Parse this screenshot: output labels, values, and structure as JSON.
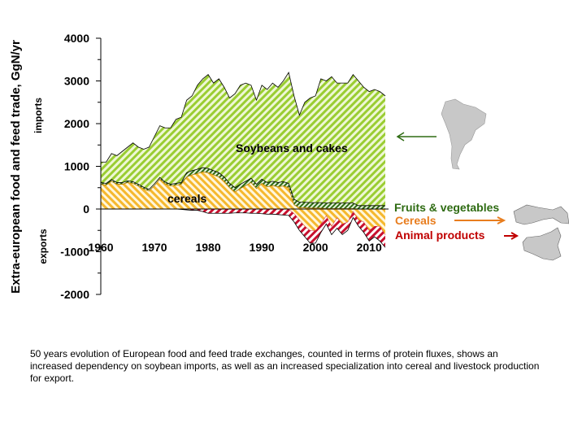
{
  "chart_data": {
    "type": "area",
    "ylabel": "Extra-european food and feed trade, GgN/yr",
    "ylim": [
      -2000,
      4000
    ],
    "yticks": [
      "4000",
      "3000",
      "2000",
      "1000",
      "0",
      "-1000",
      "-2000"
    ],
    "ytick_values": [
      4000,
      3000,
      2000,
      1000,
      0,
      -1000,
      -2000
    ],
    "xlim": [
      1960,
      2013
    ],
    "xticks": [
      "1960",
      "1970",
      "1980",
      "1990",
      "2000",
      "2010"
    ],
    "xtick_values": [
      1960,
      1970,
      1980,
      1990,
      2000,
      2010
    ],
    "side_labels": {
      "imports": "imports",
      "exports": "exports"
    },
    "area_labels": {
      "soybeans": "Soybeans and cakes",
      "cereals": "cereals"
    },
    "legend": [
      {
        "label": "Fruits & vegetables",
        "color": "#2e6b12"
      },
      {
        "label": "Cereals",
        "color": "#e87d1e"
      },
      {
        "label": "Animal products",
        "color": "#c00000"
      }
    ],
    "colors": {
      "soybeans": "#9acd32",
      "cereals": "#f5b82e",
      "fruits": "#2e6b12",
      "animal": "#c8102e"
    },
    "years": [
      1960,
      1961,
      1962,
      1963,
      1964,
      1965,
      1966,
      1967,
      1968,
      1969,
      1970,
      1971,
      1972,
      1973,
      1974,
      1975,
      1976,
      1977,
      1978,
      1979,
      1980,
      1981,
      1982,
      1983,
      1984,
      1985,
      1986,
      1987,
      1988,
      1989,
      1990,
      1991,
      1992,
      1993,
      1994,
      1995,
      1996,
      1997,
      1998,
      1999,
      2000,
      2001,
      2002,
      2003,
      2004,
      2005,
      2006,
      2007,
      2008,
      2009,
      2010,
      2011,
      2012,
      2013
    ],
    "series": [
      {
        "key": "cereals_import",
        "values": [
          580,
          560,
          650,
          580,
          580,
          620,
          600,
          540,
          470,
          420,
          550,
          700,
          590,
          540,
          560,
          580,
          750,
          800,
          830,
          870,
          850,
          800,
          750,
          650,
          500,
          400,
          480,
          550,
          620,
          480,
          600,
          520,
          550,
          520,
          540,
          500,
          100,
          30,
          30,
          20,
          20,
          20,
          10,
          10,
          10,
          10,
          10,
          10,
          0,
          0,
          0,
          0,
          0,
          0
        ]
      },
      {
        "key": "fruits_import",
        "values": [
          40,
          40,
          40,
          40,
          40,
          40,
          40,
          40,
          40,
          40,
          40,
          40,
          40,
          40,
          40,
          40,
          100,
          100,
          100,
          100,
          100,
          100,
          100,
          100,
          100,
          100,
          100,
          100,
          100,
          100,
          100,
          100,
          100,
          100,
          100,
          100,
          130,
          130,
          130,
          130,
          130,
          130,
          130,
          130,
          130,
          130,
          130,
          130,
          80,
          80,
          80,
          80,
          80,
          80
        ]
      },
      {
        "key": "soybeans_import",
        "values": [
          480,
          500,
          610,
          630,
          730,
          790,
          910,
          870,
          890,
          990,
          1110,
          1210,
          1270,
          1320,
          1500,
          1530,
          1700,
          1750,
          1970,
          2080,
          2200,
          2050,
          2200,
          2100,
          2000,
          2200,
          2320,
          2300,
          2180,
          1970,
          2200,
          2180,
          2300,
          2230,
          2360,
          2600,
          2420,
          2040,
          2340,
          2450,
          2500,
          2900,
          2860,
          2960,
          2810,
          2810,
          2810,
          3010,
          2920,
          2770,
          2670,
          2720,
          2670,
          2570
        ]
      },
      {
        "key": "cereals_export",
        "values": [
          0,
          0,
          0,
          0,
          0,
          0,
          0,
          0,
          0,
          0,
          0,
          0,
          0,
          0,
          0,
          0,
          0,
          0,
          0,
          0,
          0,
          0,
          0,
          0,
          0,
          0,
          0,
          0,
          0,
          0,
          0,
          0,
          0,
          0,
          0,
          0,
          -100,
          -250,
          -400,
          -500,
          -500,
          -350,
          -150,
          -400,
          -200,
          -350,
          -300,
          -50,
          -250,
          -300,
          -500,
          -400,
          -400,
          -600
        ]
      },
      {
        "key": "animal_export",
        "values": [
          0,
          0,
          0,
          0,
          0,
          0,
          0,
          0,
          0,
          0,
          0,
          0,
          0,
          0,
          0,
          -10,
          -20,
          -30,
          -30,
          -60,
          -100,
          -100,
          -100,
          -100,
          -100,
          -90,
          -90,
          -90,
          -100,
          -100,
          -110,
          -120,
          -120,
          -130,
          -140,
          -150,
          -200,
          -250,
          -250,
          -300,
          -300,
          -200,
          -200,
          -200,
          -250,
          -250,
          -200,
          -150,
          -150,
          -250,
          -250,
          -250,
          -350,
          -300
        ]
      }
    ]
  },
  "caption": "50 years evolution of  European food and feed trade exchanges, counted in terms of protein fluxes, shows an increased dependency on soybean imports, as well as an increased specialization into cereal and livestock production for export."
}
